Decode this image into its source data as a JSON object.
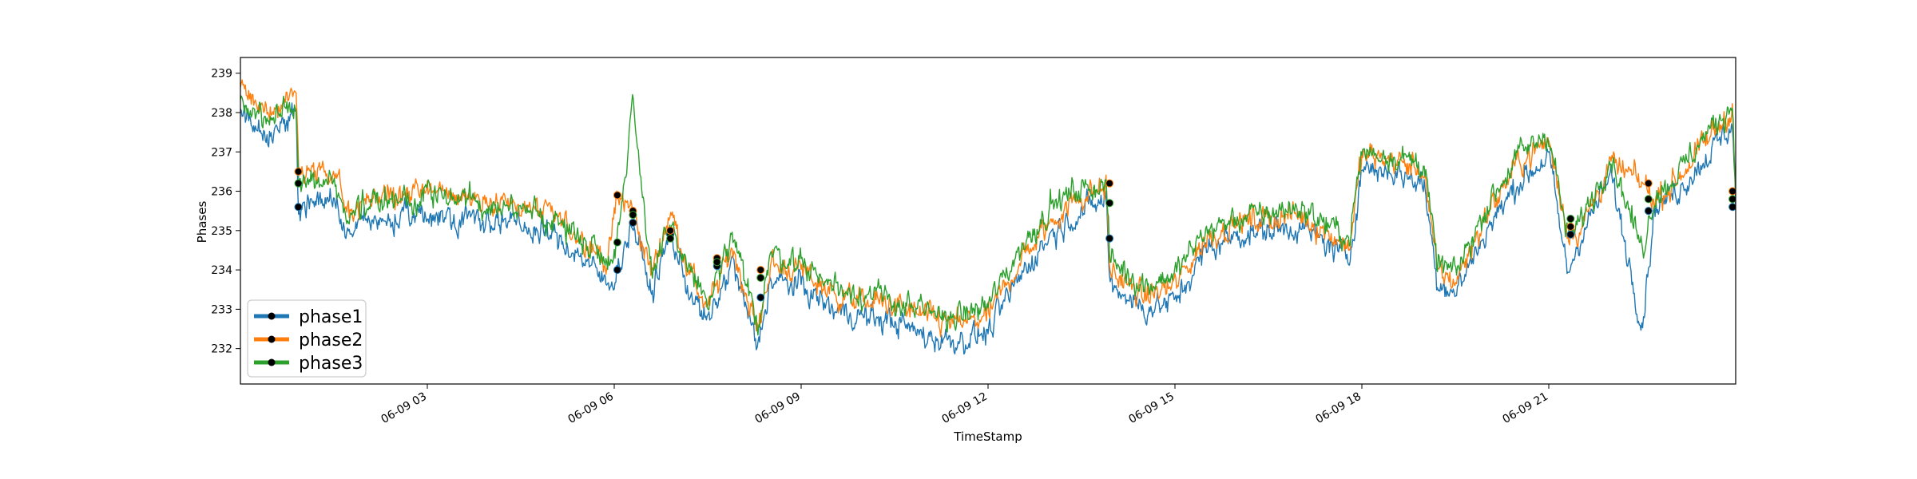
{
  "chart_data": {
    "type": "line",
    "xlabel": "TimeStamp",
    "ylabel": "Phases",
    "x_start": "06-09 00:00",
    "x_end": "06-09 23:59",
    "ylim": [
      231.1,
      239.4
    ],
    "x_ticks": [
      "06-09 03",
      "06-09 06",
      "06-09 09",
      "06-09 12",
      "06-09 15",
      "06-09 18",
      "06-09 21"
    ],
    "y_ticks": [
      232,
      233,
      234,
      235,
      236,
      237,
      238,
      239
    ],
    "legend": {
      "placement": "lower-left",
      "entries": [
        "phase1",
        "phase2",
        "phase3"
      ]
    },
    "colors": {
      "phase1": "#1f77b4",
      "phase2": "#ff7f0e",
      "phase3": "#2ca02c",
      "marker": "#000000"
    },
    "series": [
      {
        "name": "phase1",
        "x_hours": [
          0,
          0.5,
          0.9,
          0.93,
          1.5,
          1.7,
          2.0,
          3.0,
          4.0,
          5.0,
          5.5,
          5.9,
          6.05,
          6.3,
          6.6,
          6.9,
          7.2,
          7.5,
          7.9,
          8.3,
          8.5,
          9.0,
          9.5,
          10.0,
          10.5,
          11.0,
          11.5,
          12.0,
          12.5,
          13.0,
          13.4,
          13.9,
          13.95,
          14.5,
          15.0,
          15.5,
          16.0,
          17.0,
          17.8,
          18.0,
          18.5,
          19.0,
          19.2,
          19.5,
          20.0,
          20.5,
          21.0,
          21.3,
          21.5,
          22.0,
          22.5,
          22.7,
          23.0,
          23.5,
          23.95,
          24.0
        ],
        "values": [
          238.0,
          237.4,
          238.0,
          235.6,
          235.8,
          234.9,
          235.2,
          235.4,
          235.3,
          234.9,
          234.3,
          233.6,
          234.0,
          235.2,
          233.4,
          234.9,
          233.5,
          232.6,
          234.2,
          232.0,
          233.7,
          233.6,
          233.0,
          232.8,
          232.7,
          232.3,
          232.2,
          232.4,
          233.8,
          234.9,
          235.4,
          235.8,
          233.7,
          233.0,
          233.2,
          234.5,
          234.9,
          235.1,
          234.3,
          236.6,
          236.5,
          236.2,
          233.8,
          233.4,
          235.0,
          236.2,
          236.9,
          233.9,
          234.8,
          236.4,
          232.6,
          235.6,
          235.9,
          236.8,
          237.7,
          235.6
        ]
      },
      {
        "name": "phase2",
        "x_hours": [
          0,
          0.5,
          0.9,
          0.93,
          1.5,
          1.7,
          2.0,
          3.0,
          4.0,
          5.0,
          5.5,
          5.9,
          6.05,
          6.3,
          6.6,
          6.9,
          7.2,
          7.5,
          7.9,
          8.3,
          8.5,
          9.0,
          9.5,
          10.0,
          10.5,
          11.0,
          11.5,
          12.0,
          12.5,
          13.0,
          13.4,
          13.9,
          13.95,
          14.5,
          15.0,
          15.5,
          16.0,
          17.0,
          17.8,
          18.0,
          18.5,
          19.0,
          19.2,
          19.5,
          20.0,
          20.5,
          21.0,
          21.3,
          21.5,
          22.0,
          22.5,
          22.7,
          23.0,
          23.5,
          23.95,
          24.0
        ],
        "values": [
          238.6,
          237.9,
          238.6,
          236.5,
          236.4,
          235.5,
          235.8,
          236.0,
          235.8,
          235.4,
          234.8,
          234.2,
          235.9,
          235.5,
          233.9,
          235.5,
          234.0,
          233.0,
          234.6,
          232.4,
          234.1,
          234.0,
          233.4,
          233.2,
          233.1,
          232.8,
          232.6,
          232.8,
          234.2,
          235.2,
          235.8,
          236.1,
          234.0,
          233.3,
          233.6,
          234.8,
          235.2,
          235.4,
          234.6,
          236.9,
          236.8,
          236.5,
          234.0,
          233.7,
          235.4,
          236.7,
          237.3,
          235.0,
          235.0,
          236.7,
          236.2,
          235.8,
          236.2,
          237.2,
          238.1,
          235.8
        ]
      },
      {
        "name": "phase3",
        "x_hours": [
          0,
          0.5,
          0.9,
          0.93,
          1.5,
          1.7,
          2.0,
          3.0,
          4.0,
          5.0,
          5.5,
          5.9,
          6.05,
          6.3,
          6.6,
          6.9,
          7.2,
          7.5,
          7.9,
          8.3,
          8.5,
          9.0,
          9.5,
          10.0,
          10.5,
          11.0,
          11.5,
          12.0,
          12.5,
          13.0,
          13.4,
          13.9,
          13.95,
          14.5,
          15.0,
          15.5,
          16.0,
          17.0,
          17.8,
          18.0,
          18.5,
          19.0,
          19.2,
          19.5,
          20.0,
          20.5,
          21.0,
          21.3,
          21.5,
          22.0,
          22.5,
          22.7,
          23.0,
          23.5,
          23.95,
          24.0
        ],
        "values": [
          238.3,
          237.7,
          238.3,
          236.2,
          236.2,
          235.3,
          235.7,
          235.9,
          235.7,
          235.3,
          234.8,
          234.3,
          234.7,
          238.3,
          233.9,
          235.0,
          234.1,
          233.1,
          234.8,
          232.6,
          234.4,
          234.2,
          233.6,
          233.4,
          233.2,
          232.9,
          232.8,
          233.1,
          234.5,
          235.6,
          236.0,
          236.2,
          234.3,
          233.6,
          233.9,
          235.0,
          235.3,
          235.6,
          234.8,
          237.0,
          236.9,
          236.7,
          234.2,
          233.9,
          235.6,
          236.9,
          237.5,
          234.8,
          235.2,
          236.9,
          234.5,
          235.9,
          236.3,
          237.4,
          238.2,
          236.0
        ]
      }
    ],
    "markers": [
      {
        "x_hour": 0.93,
        "values": [
          235.6,
          236.5,
          236.2
        ]
      },
      {
        "x_hour": 6.05,
        "values": [
          234.0,
          235.9,
          234.7
        ]
      },
      {
        "x_hour": 6.3,
        "values": [
          235.2,
          235.5,
          235.4
        ]
      },
      {
        "x_hour": 6.9,
        "values": [
          234.9,
          235.0,
          234.8
        ]
      },
      {
        "x_hour": 7.65,
        "values": [
          234.1,
          234.3,
          234.2
        ]
      },
      {
        "x_hour": 8.35,
        "values": [
          233.3,
          234.0,
          233.8
        ]
      },
      {
        "x_hour": 13.95,
        "values": [
          234.8,
          236.2,
          235.7
        ]
      },
      {
        "x_hour": 21.35,
        "values": [
          234.9,
          235.1,
          235.3
        ]
      },
      {
        "x_hour": 22.6,
        "values": [
          235.5,
          236.2,
          235.8
        ]
      },
      {
        "x_hour": 23.95,
        "values": [
          235.6,
          236.0,
          235.8
        ]
      }
    ]
  }
}
